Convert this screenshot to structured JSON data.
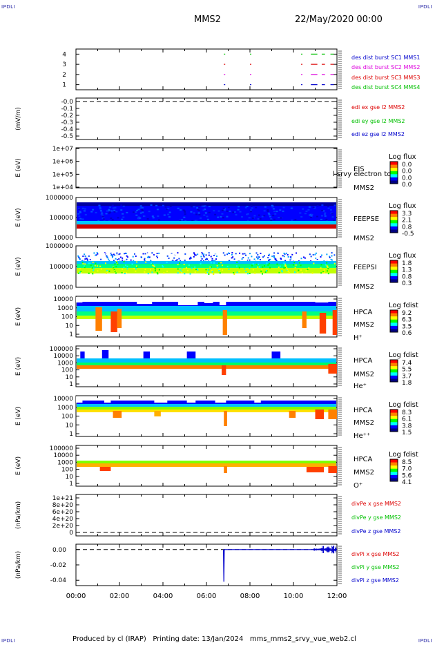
{
  "corner_label": "IPDLI",
  "header": {
    "spacecraft": "MMS2",
    "date_time": "22/May/2020 00:00"
  },
  "footer": {
    "text": "Produced by cl (IRAP)   Printing date: 13/Jan/2024   mms_mms2_srvy_vue_web2.cl"
  },
  "colors": {
    "frame": "#000000",
    "red": "#dd0000",
    "green": "#00c000",
    "blue": "#0000cc",
    "magenta": "#dd00dd"
  },
  "chart_data": [
    {
      "type": "scatter",
      "name": "burst",
      "yticks": [
        "4",
        "3",
        "2",
        "1"
      ],
      "ylim": [
        0.5,
        4.5
      ],
      "legend": [
        {
          "text": "des dist burst SC1 MMS1",
          "color": "#0000cc"
        },
        {
          "text": "des dist burst SC2 MMS2",
          "color": "#dd00dd"
        },
        {
          "text": "des dist burst SC3 MMS3",
          "color": "#dd0000"
        },
        {
          "text": "des dist burst SC4 MMS4",
          "color": "#00c000"
        }
      ],
      "intervals_hours": [
        [
          6.8,
          6.85
        ],
        [
          8.0,
          8.05
        ],
        [
          10.35,
          10.4
        ],
        [
          10.8,
          11.1
        ],
        [
          11.3,
          11.45
        ],
        [
          11.7,
          11.85
        ]
      ]
    },
    {
      "type": "line",
      "name": "edi",
      "ylabel": "(mV/m)",
      "yticks": [
        "-0.0",
        "-0.1",
        "-0.2",
        "-0.3",
        "-0.4",
        "-0.5"
      ],
      "ylim": [
        -0.55,
        0.03
      ],
      "legend": [
        {
          "text": "edi ex gse l2 MMS2",
          "color": "#dd0000"
        },
        {
          "text": "edi ey gse l2 MMS2",
          "color": "#00c000"
        },
        {
          "text": "edi ez gse l2 MMS2",
          "color": "#0000cc"
        }
      ]
    },
    {
      "type": "heatmap",
      "name": "eis",
      "ylabel": "E (eV)",
      "yticks": [
        "1e+07",
        "1e+06",
        "1e+05",
        "1e+04"
      ],
      "right_labels": [
        "EIS",
        "MMS2"
      ],
      "overlay_text": "l srvy electron to",
      "cbar_title": "Log flux",
      "cbar_ticks": [
        "0.0",
        "0.0",
        "0.0",
        "0.0"
      ]
    },
    {
      "type": "heatmap",
      "name": "feepse",
      "ylabel": "E (eV)",
      "yticks": [
        "1000000",
        "100000",
        "10000"
      ],
      "right_labels": [
        "FEEPSE",
        "MMS2"
      ],
      "cbar_title": "Log flux",
      "cbar_ticks": [
        "3.3",
        "2.1",
        "0.8",
        "-0.5"
      ]
    },
    {
      "type": "heatmap",
      "name": "feepsi",
      "ylabel": "E (eV)",
      "yticks": [
        "1000000",
        "100000",
        "10000"
      ],
      "right_labels": [
        "FEEPSI",
        "MMS2"
      ],
      "cbar_title": "Log flux",
      "cbar_ticks": [
        "1.8",
        "1.3",
        "0.8",
        "0.3"
      ]
    },
    {
      "type": "heatmap",
      "name": "hpca-h",
      "ylabel": "E (eV)",
      "yticks": [
        "10000",
        "1000",
        "100",
        "10",
        "1"
      ],
      "right_labels": [
        "HPCA",
        "MMS2",
        "H⁺"
      ],
      "cbar_title": "Log fdist",
      "cbar_ticks": [
        "9.2",
        "6.3",
        "3.5",
        "0.6"
      ]
    },
    {
      "type": "heatmap",
      "name": "hpca-he",
      "ylabel": "E (eV)",
      "yticks": [
        "100000",
        "10000",
        "1000",
        "100",
        "10",
        "1"
      ],
      "right_labels": [
        "HPCA",
        "MMS2",
        "He⁺"
      ],
      "cbar_title": "Log fdist",
      "cbar_ticks": [
        "7.4",
        "5.5",
        "3.7",
        "1.8"
      ]
    },
    {
      "type": "heatmap",
      "name": "hpca-hepp",
      "ylabel": "E (eV)",
      "yticks": [
        "10000",
        "1000",
        "100",
        "10",
        "1"
      ],
      "right_labels": [
        "HPCA",
        "MMS2",
        "He⁺⁺"
      ],
      "cbar_title": "Log fdist",
      "cbar_ticks": [
        "8.3",
        "6.1",
        "3.8",
        "1.5"
      ]
    },
    {
      "type": "heatmap",
      "name": "hpca-o",
      "ylabel": "E (eV)",
      "yticks": [
        "100000",
        "10000",
        "1000",
        "100",
        "10",
        "1"
      ],
      "right_labels": [
        "HPCA",
        "MMS2",
        "O⁺"
      ],
      "cbar_title": "Log fdist",
      "cbar_ticks": [
        "8.5",
        "7.0",
        "5.6",
        "4.1"
      ]
    },
    {
      "type": "line",
      "name": "divpe",
      "ylabel": "(nPa/km)",
      "yticks": [
        "1e+21",
        "8e+20",
        "6e+20",
        "4e+20",
        "2e+20",
        "0"
      ],
      "ylim": [
        -5e+19,
        1.05e+21
      ],
      "legend": [
        {
          "text": "divPe x gse MMS2",
          "color": "#dd0000"
        },
        {
          "text": "divPe y gse MMS2",
          "color": "#00c000"
        },
        {
          "text": "divPe z gse MMS2",
          "color": "#0000cc"
        }
      ]
    },
    {
      "type": "line",
      "name": "divpi",
      "ylabel": "(nPa/km)",
      "yticks": [
        "0.00",
        "-0.02",
        "-0.04"
      ],
      "ylim": [
        -0.047,
        0.007
      ],
      "legend": [
        {
          "text": "divPi x gse MMS2",
          "color": "#dd0000"
        },
        {
          "text": "divPi y gse MMS2",
          "color": "#00c000"
        },
        {
          "text": "divPi z gse MMS2",
          "color": "#0000cc"
        }
      ],
      "series": [
        {
          "name": "divPi z gse MMS2",
          "x": [
            6.78,
            6.8,
            6.82,
            7.0,
            7.5,
            8.0,
            8.5,
            9.0,
            9.5,
            10.0,
            10.5,
            11.0,
            11.3,
            11.6,
            11.8,
            12.0
          ],
          "y": [
            0.0,
            -0.042,
            0.0,
            0.0,
            0.0,
            0.0,
            0.0,
            0.0,
            0.0,
            0.0,
            0.0,
            0.0,
            0.001,
            0.0,
            -0.002,
            0.0
          ]
        }
      ]
    }
  ],
  "x_axis": {
    "ticks": [
      "00:00",
      "02:00",
      "04:00",
      "06:00",
      "08:00",
      "10:00",
      "12:00"
    ],
    "range_hours": [
      0,
      12
    ]
  }
}
